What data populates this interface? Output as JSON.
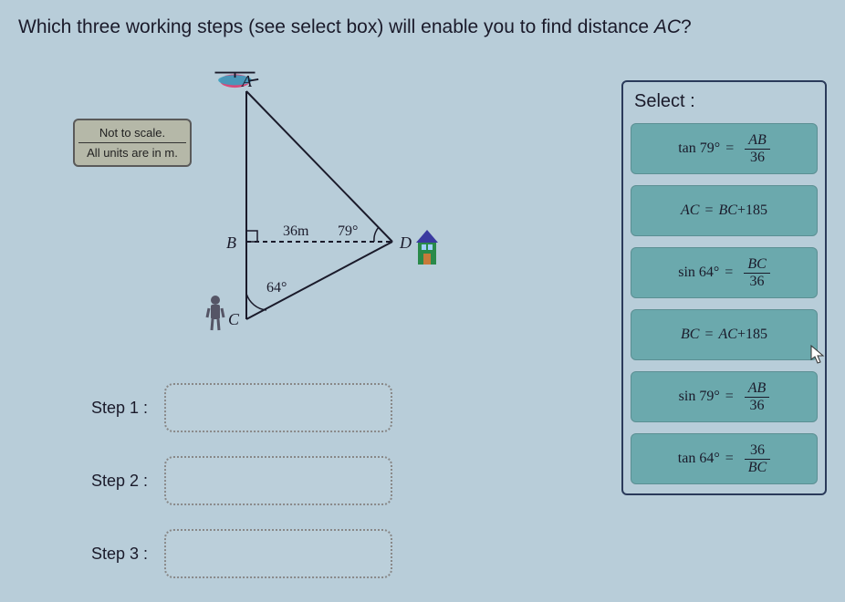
{
  "question": {
    "prefix": "Which three working steps (see select box) will enable you to find distance ",
    "target": "AC",
    "suffix": "?"
  },
  "note": {
    "line1": "Not to scale.",
    "line2": "All units are in m."
  },
  "diagram": {
    "pointA": "A",
    "pointB": "B",
    "pointC": "C",
    "pointD": "D",
    "bd_length": "36m",
    "angle_d": "79°",
    "angle_c": "64°"
  },
  "steps": {
    "labels": [
      "Step 1 :",
      "Step 2 :",
      "Step 3 :"
    ]
  },
  "select": {
    "title": "Select :",
    "options": [
      {
        "type": "trig",
        "fn": "tan",
        "deg": "79°",
        "num": "AB",
        "den": "36"
      },
      {
        "type": "sum",
        "lhs": "AC",
        "a": "BC",
        "b": "185"
      },
      {
        "type": "trig",
        "fn": "sin",
        "deg": "64°",
        "num": "BC",
        "den": "36"
      },
      {
        "type": "sum",
        "lhs": "BC",
        "a": "AC",
        "b": "185"
      },
      {
        "type": "trig",
        "fn": "sin",
        "deg": "79°",
        "num": "AB",
        "den": "36"
      },
      {
        "type": "trig",
        "fn": "tan",
        "deg": "64°",
        "num": "36",
        "den": "BC"
      }
    ]
  },
  "colors": {
    "bg": "#b8cdd9",
    "option_bg": "#6ba9ad",
    "panel_border": "#2a3a5a",
    "note_bg": "#b5b8a8",
    "heli_body": "#d94a7a",
    "heli_accent": "#3aa0c0",
    "house_wall": "#2a8a4a",
    "house_roof": "#3a3aa0",
    "person": "#556",
    "line": "#1a1a2a"
  }
}
